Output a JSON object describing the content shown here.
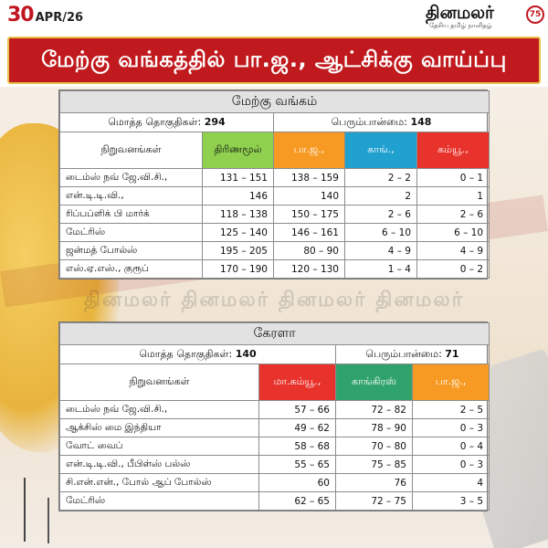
{
  "header": {
    "date_day": "30",
    "date_month": "APR/26",
    "logo_name": "தினமலர்",
    "logo_tagline": "தேசிய தமிழ் நாளிதழ்",
    "logo_seal": "75"
  },
  "banner": {
    "title": "மேற்கு வங்கத்தில் பா.ஜ., ஆட்சிக்கு வாய்ப்பு"
  },
  "watermark": "தினமலர்   தினமலர்   தினமலர்   தினமலர்",
  "west_bengal": {
    "title": "மேற்கு வங்கம்",
    "total_label": "மொத்த தொகுதிகள்:",
    "total_value": "294",
    "majority_label": "பெரும்பான்மை:",
    "majority_value": "148",
    "columns": {
      "org": "நிறுவனங்கள்",
      "p1": "திரிணமூல்",
      "p2": "பா.ஜ.,",
      "p3": "காங்.,",
      "p4": "கம்யூ.,"
    },
    "colors": {
      "p1": "#8fd14f",
      "p2": "#f79a23",
      "p3": "#1fa0cf",
      "p4": "#e8322c"
    },
    "rows": [
      {
        "org": "டைம்ஸ் நவ் ஜே.வி.சி.,",
        "p1": "131 – 151",
        "p2": "138 – 159",
        "p3": "2 – 2",
        "p4": "0 – 1"
      },
      {
        "org": "என்.டி.டி.வி.,",
        "p1": "146",
        "p2": "140",
        "p3": "2",
        "p4": "1"
      },
      {
        "org": "ரிப்பப்ளிக் பி மார்க்",
        "p1": "118 – 138",
        "p2": "150 – 175",
        "p3": "2 – 6",
        "p4": "2 – 6"
      },
      {
        "org": "மேட்ரிஸ்",
        "p1": "125 – 140",
        "p2": "146 – 161",
        "p3": "6 – 10",
        "p4": "6 – 10"
      },
      {
        "org": "ஜன்மத் போல்ஸ்",
        "p1": "195 – 205",
        "p2": "80 – 90",
        "p3": "4 – 9",
        "p4": "4 – 9"
      },
      {
        "org": "எஸ்.ஏ.எஸ்., குரூப்",
        "p1": "170 – 190",
        "p2": "120 – 130",
        "p3": "1 – 4",
        "p4": "0 – 2"
      }
    ]
  },
  "kerala": {
    "title": "கேரளா",
    "total_label": "மொத்த தொகுதிகள்:",
    "total_value": "140",
    "majority_label": "பெரும்பான்மை:",
    "majority_value": "71",
    "columns": {
      "org": "நிறுவனங்கள்",
      "p1": "மா.கம்யூ.,",
      "p2": "காங்கிரஸ்",
      "p3": "பா.ஜ.,"
    },
    "colors": {
      "p1": "#e8322c",
      "p2": "#2fa36b",
      "p3": "#f79a23"
    },
    "rows": [
      {
        "org": "டைம்ஸ் நவ் ஜே.வி.சி.,",
        "p1": "57 – 66",
        "p2": "72 – 82",
        "p3": "2 – 5"
      },
      {
        "org": "ஆக்சிஸ் மை இந்தியா",
        "p1": "49 – 62",
        "p2": "78 – 90",
        "p3": "0 – 3"
      },
      {
        "org": "வோட் வைப்",
        "p1": "58 – 68",
        "p2": "70 – 80",
        "p3": "0 – 4"
      },
      {
        "org": "என்.டி.டி.வி., பீபிள்ஸ் பல்ஸ்",
        "p1": "55 – 65",
        "p2": "75 – 85",
        "p3": "0 – 3"
      },
      {
        "org": "சி.என்.என்., போல் ஆப் போல்ஸ்",
        "p1": "60",
        "p2": "76",
        "p3": "4"
      },
      {
        "org": "மேட்ரிஸ்",
        "p1": "62 – 65",
        "p2": "72 – 75",
        "p3": "3 – 5"
      }
    ]
  }
}
